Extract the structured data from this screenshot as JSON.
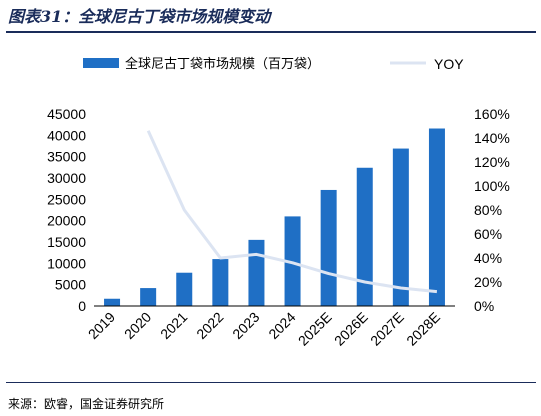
{
  "figure": {
    "title": "图表31：全球尼古丁袋市场规模变动",
    "source": "来源：欧睿，国金证券研究所"
  },
  "chart_data": {
    "type": "bar",
    "categories": [
      "2019",
      "2020",
      "2021",
      "2022",
      "2023",
      "2024",
      "2025E",
      "2026E",
      "2027E",
      "2028E"
    ],
    "series": [
      {
        "name": "全球尼古丁袋市场规模（百万袋）",
        "type": "bar",
        "axis": "left",
        "color": "#1f6fc5",
        "values": [
          1700,
          4200,
          7800,
          11000,
          15500,
          21000,
          27200,
          32400,
          36900,
          41600
        ]
      },
      {
        "name": "YOY",
        "type": "line",
        "axis": "right",
        "color": "#dce4f2",
        "values": [
          null,
          1.46,
          0.8,
          0.4,
          0.43,
          0.36,
          0.27,
          0.2,
          0.15,
          0.12
        ]
      }
    ],
    "y_left": {
      "min": 0,
      "max": 45000,
      "step": 5000,
      "ticks": [
        "0",
        "5000",
        "10000",
        "15000",
        "20000",
        "25000",
        "30000",
        "35000",
        "40000",
        "45000"
      ]
    },
    "y_right": {
      "min": 0,
      "max": 1.6,
      "step": 0.2,
      "ticks": [
        "0%",
        "20%",
        "40%",
        "60%",
        "80%",
        "100%",
        "120%",
        "140%",
        "160%"
      ]
    },
    "legend_position": "top",
    "grid": false
  }
}
